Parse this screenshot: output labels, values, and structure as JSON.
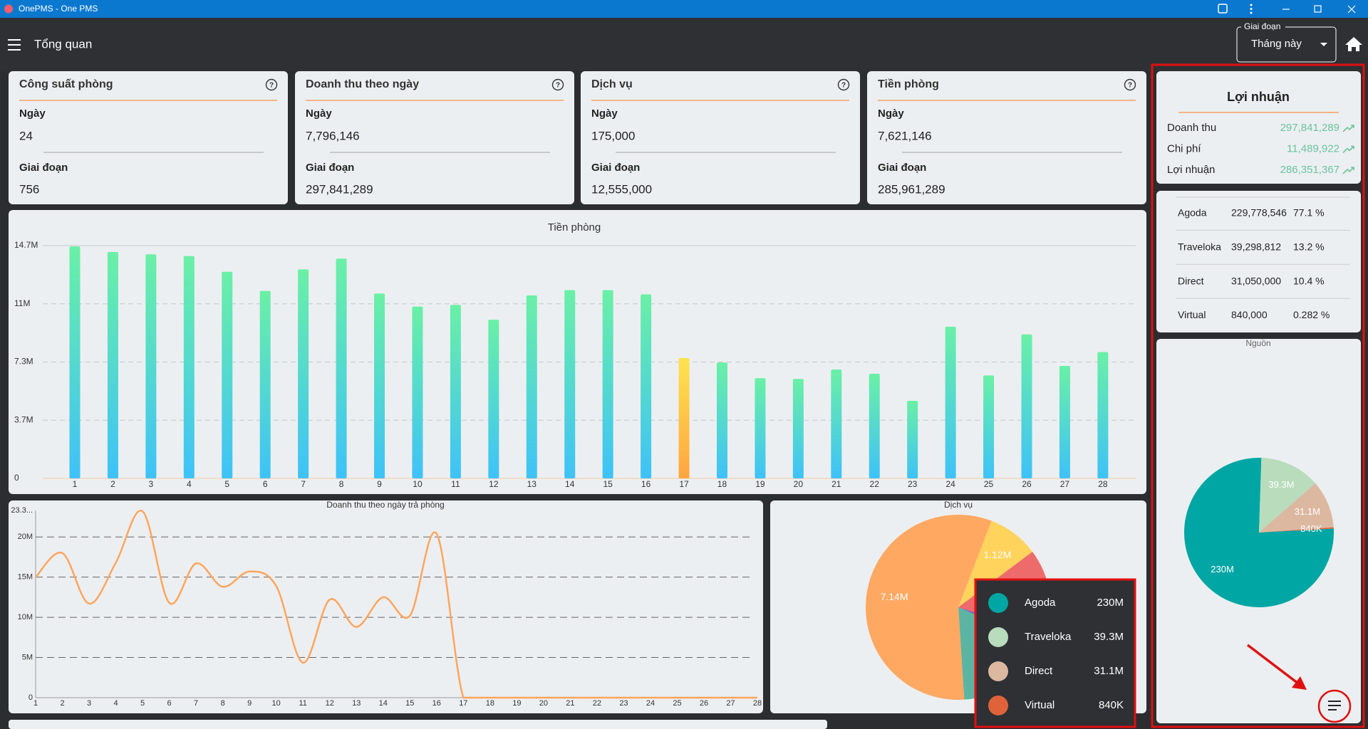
{
  "window": {
    "title": "OnePMS - One PMS"
  },
  "header": {
    "title": "Tổng quan",
    "period_label": "Giai đoạn",
    "period_value": "Tháng này"
  },
  "cards": [
    {
      "title": "Công suất phòng",
      "day_label": "Ngày",
      "day_value": "24",
      "period_label": "Giai đoạn",
      "period_value": "756"
    },
    {
      "title": "Doanh thu theo ngày",
      "day_label": "Ngày",
      "day_value": "7,796,146",
      "period_label": "Giai đoạn",
      "period_value": "297,841,289"
    },
    {
      "title": "Dịch vụ",
      "day_label": "Ngày",
      "day_value": "175,000",
      "period_label": "Giai đoạn",
      "period_value": "12,555,000"
    },
    {
      "title": "Tiền phòng",
      "day_label": "Ngày",
      "day_value": "7,621,146",
      "period_label": "Giai đoạn",
      "period_value": "285,961,289"
    }
  ],
  "profit": {
    "title": "Lợi nhuận",
    "rows": [
      {
        "label": "Doanh thu",
        "value": "297,841,289"
      },
      {
        "label": "Chi phí",
        "value": "11,489,922"
      },
      {
        "label": "Lợi nhuận",
        "value": "286,351,367"
      }
    ]
  },
  "sources_table": {
    "rows": [
      [
        "Agoda",
        "229,778,546",
        "77.1 %"
      ],
      [
        "Traveloka",
        "39,298,812",
        "13.2 %"
      ],
      [
        "Direct",
        "31,050,000",
        "10.4 %"
      ],
      [
        "Virtual",
        "840,000",
        "0.282 %"
      ]
    ]
  },
  "chart_data": [
    {
      "type": "bar",
      "title": "Tiền phòng",
      "categories": [
        "1",
        "2",
        "3",
        "4",
        "5",
        "6",
        "7",
        "8",
        "9",
        "10",
        "11",
        "12",
        "13",
        "14",
        "15",
        "16",
        "17",
        "18",
        "19",
        "20",
        "21",
        "22",
        "23",
        "24",
        "25",
        "26",
        "27",
        "28"
      ],
      "values": [
        14650000,
        14300000,
        14150000,
        14040000,
        13050000,
        11840000,
        13200000,
        13880000,
        11670000,
        10850000,
        10960000,
        10020000,
        11560000,
        11890000,
        11890000,
        11620000,
        7600000,
        7320000,
        6330000,
        6280000,
        6880000,
        6610000,
        4900000,
        9580000,
        6500000,
        9090000,
        7100000,
        7980000
      ],
      "ylim": [
        0,
        14700000
      ],
      "yticks": [
        0,
        {
          "value": 3675000,
          "label": "3.7M"
        },
        {
          "value": 7350000,
          "label": "7.3M"
        },
        {
          "value": 11025000,
          "label": "11M"
        },
        {
          "value": 14700000,
          "label": "14.7M"
        }
      ],
      "gradient": [
        "#6af0a6",
        "#3ec2f8"
      ],
      "highlight_index": 16,
      "highlight_gradient": [
        "#ffe34f",
        "#ffa53f"
      ],
      "grid": true
    },
    {
      "type": "line",
      "title": "Doanh thu theo ngày trả phòng",
      "categories": [
        "1",
        "2",
        "3",
        "4",
        "5",
        "6",
        "7",
        "8",
        "9",
        "10",
        "11",
        "12",
        "13",
        "14",
        "15",
        "16",
        "17",
        "18",
        "19",
        "20",
        "21",
        "22",
        "23",
        "24",
        "25",
        "26",
        "27",
        "28"
      ],
      "values": [
        15000000,
        18000000,
        11700000,
        16800000,
        23200000,
        11800000,
        16700000,
        13800000,
        15700000,
        13900000,
        4350000,
        12200000,
        8800000,
        12500000,
        10200000,
        20400000,
        0,
        0,
        0,
        0,
        0,
        0,
        0,
        0,
        0,
        0,
        0,
        0
      ],
      "color": "#ffa55e",
      "ylim": [
        0,
        23300000
      ],
      "yticks": [
        0,
        {
          "value": 5000000,
          "label": "5M"
        },
        {
          "value": 10000000,
          "label": "10M"
        },
        {
          "value": 15000000,
          "label": "15M"
        },
        {
          "value": 20000000,
          "label": "20M"
        },
        {
          "value": 23300000,
          "label": "23.3..."
        }
      ],
      "grid": true
    },
    {
      "type": "pie",
      "title": "Dịch vụ",
      "values": [
        1120000,
        1900000,
        200000,
        2200000,
        7140000
      ],
      "value_labels": [
        "1.12M",
        null,
        null,
        null,
        "7.14M"
      ],
      "colors": [
        "#ffd35c",
        "#ee6b6b",
        "#7e57c2",
        "#5cb5a2",
        "#ffa862"
      ]
    },
    {
      "type": "pie",
      "title": "Nguồn",
      "categories": [
        "Agoda",
        "Traveloka",
        "Direct",
        "Virtual"
      ],
      "values": [
        229778546,
        39298812,
        31050000,
        840000
      ],
      "value_labels": [
        "230M",
        "39.3M",
        "31.1M",
        "840K"
      ],
      "colors": [
        "#00a6a4",
        "#b8dcbc",
        "#dcb8a0",
        "#e0623a"
      ],
      "legend": true
    }
  ]
}
